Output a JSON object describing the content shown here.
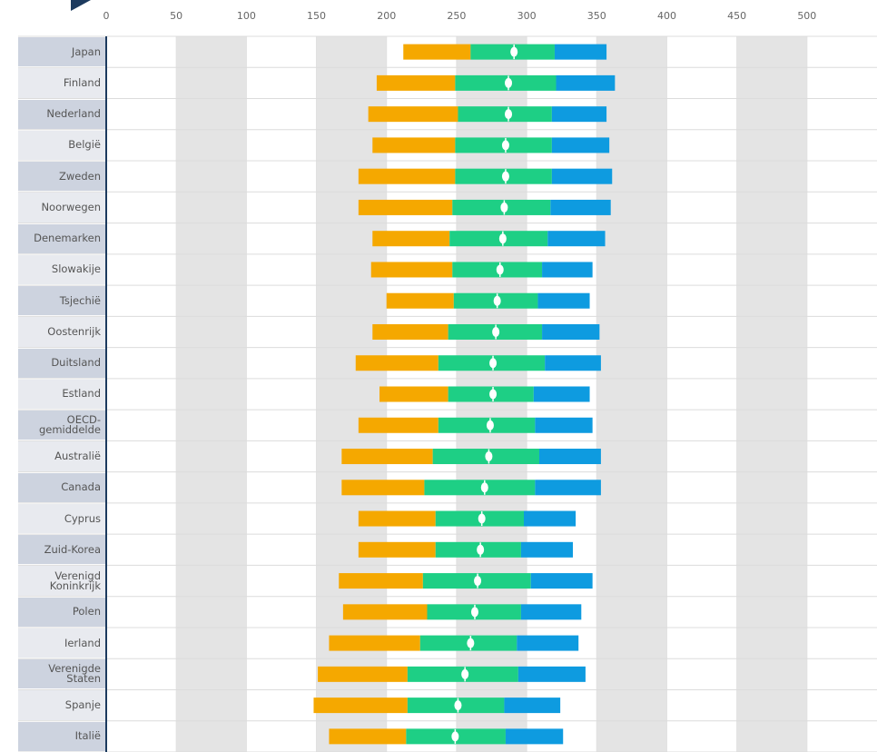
{
  "chart_data": {
    "type": "range-bar",
    "categories": [
      "Japan",
      "Finland",
      "Nederland",
      "België",
      "Zweden",
      "Noorwegen",
      "Denemarken",
      "Slowakije",
      "Tsjechië",
      "Oostenrijk",
      "Duitsland",
      "Estland",
      "OECD-gemiddelde",
      "Australië",
      "Canada",
      "Cyprus",
      "Zuid-Korea",
      "Verenigd Koninkrijk",
      "Polen",
      "Ierland",
      "Verenigde Staten",
      "Spanje",
      "Italië"
    ],
    "series": [
      {
        "color": "#f5a800",
        "values": [
          212,
          193,
          187,
          190,
          180,
          180,
          190,
          189,
          200,
          190,
          178,
          195,
          180,
          168,
          168,
          180,
          180,
          166,
          169,
          159,
          151,
          148,
          159
        ]
      },
      {
        "color": "#1ecf85",
        "values": [
          260,
          249,
          251,
          249,
          249,
          247,
          245,
          247,
          248,
          244,
          237,
          244,
          237,
          233,
          227,
          235,
          235,
          226,
          229,
          224,
          215,
          215,
          214
        ]
      },
      {
        "color": "#0e9be0",
        "values": [
          320,
          321,
          318,
          318,
          318,
          317,
          315,
          311,
          308,
          311,
          313,
          305,
          306,
          309,
          306,
          298,
          296,
          303,
          296,
          293,
          294,
          284,
          285
        ]
      },
      {
        "values": [
          357,
          363,
          357,
          359,
          361,
          360,
          356,
          347,
          345,
          352,
          353,
          345,
          347,
          353,
          353,
          335,
          333,
          347,
          339,
          337,
          342,
          324,
          326
        ]
      }
    ],
    "mean": [
      291,
      287,
      287,
      285,
      285,
      284,
      283,
      281,
      279,
      278,
      276,
      276,
      274,
      273,
      270,
      268,
      267,
      265,
      263,
      260,
      256,
      251,
      249
    ],
    "xlim": [
      0,
      550
    ],
    "xticks": [
      0,
      50,
      100,
      150,
      200,
      250,
      300,
      350,
      400,
      450,
      500
    ],
    "grid": true
  }
}
